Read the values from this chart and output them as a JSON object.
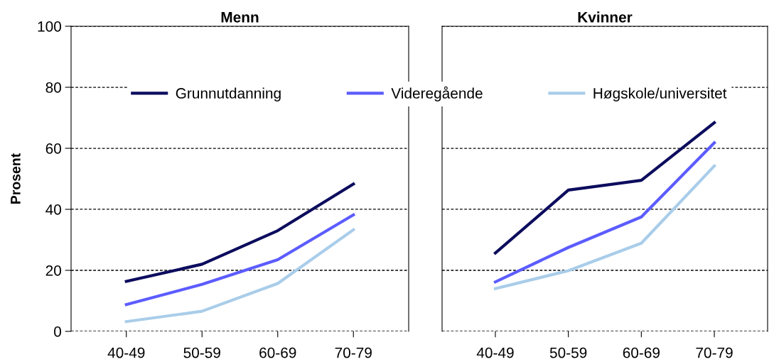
{
  "chart_data": [
    {
      "type": "line",
      "title": "Menn",
      "ylabel": "Prosent",
      "categories": [
        "40-49",
        "50-59",
        "60-69",
        "70-79"
      ],
      "ylim": [
        0,
        100
      ],
      "yticks": [
        0,
        20,
        40,
        60,
        80,
        100
      ],
      "grid": "y",
      "legend": "top",
      "marker": "none",
      "line_style": "solid",
      "series": [
        {
          "name": "Grunnutdanning",
          "color": "#0c0c5e",
          "values": [
            16.4,
            22,
            33,
            48.3
          ]
        },
        {
          "name": "Videregående",
          "color": "#5c5cff",
          "values": [
            8.8,
            15.4,
            23.5,
            38.2
          ]
        },
        {
          "name": "Høgskole/universitet",
          "color": "#a9cdea",
          "values": [
            3.2,
            6.6,
            15.7,
            33.3
          ]
        }
      ]
    },
    {
      "type": "line",
      "title": "Kvinner",
      "categories": [
        "40-49",
        "50-59",
        "60-69",
        "70-79"
      ],
      "ylim": [
        0,
        100
      ],
      "yticks": [
        0,
        20,
        40,
        60,
        80,
        100
      ],
      "grid": "y",
      "tick_labels": "x",
      "marker": "none",
      "line_style": "solid",
      "series": [
        {
          "name": "Grunnutdanning",
          "color": "#0c0c5e",
          "values": [
            25.7,
            46.3,
            49.5,
            68.4
          ]
        },
        {
          "name": "Videregående",
          "color": "#5c5cff",
          "values": [
            16.2,
            27.5,
            37.5,
            61.8
          ]
        },
        {
          "name": "Høgskole/universitet",
          "color": "#a9cdea",
          "values": [
            14,
            19.9,
            28.9,
            54.2
          ]
        }
      ]
    }
  ]
}
